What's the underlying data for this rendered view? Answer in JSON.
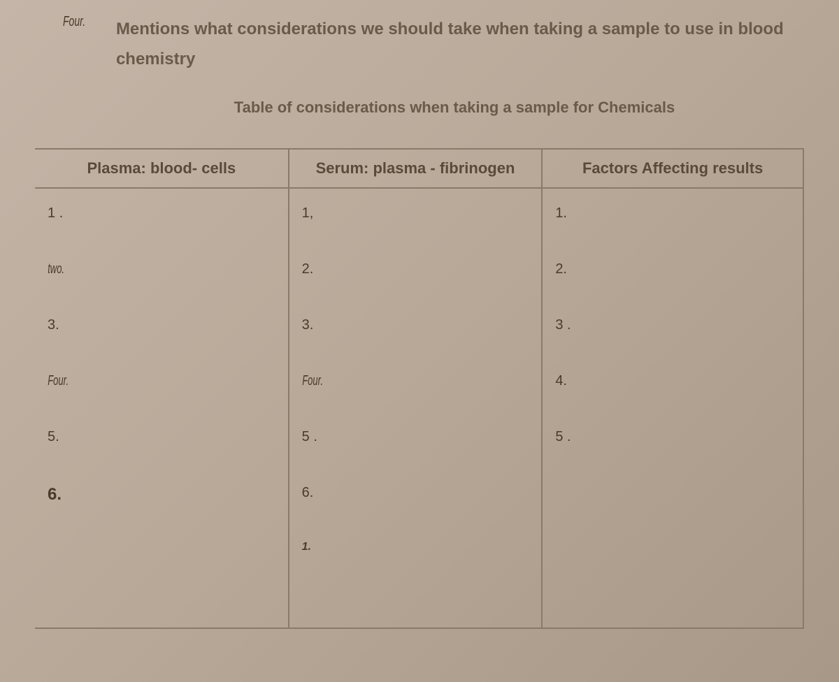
{
  "header": {
    "number": "Four.",
    "text_line": "Mentions what considerations we should take when taking a sample to use in blood  chemistry"
  },
  "caption": "Table of considerations when taking a sample for Chemicals",
  "table": {
    "headers": {
      "col_a": "Plasma: blood- cells",
      "col_b": "Serum: plasma - fibrinogen",
      "col_c": "Factors  Affecting results"
    },
    "col_a_rows": [
      "1 .",
      "two.",
      "3.",
      "Four.",
      "5.",
      "6."
    ],
    "col_a_styles": [
      "normal",
      "narrow",
      "normal",
      "narrow",
      "normal",
      "bold"
    ],
    "col_b_rows": [
      "1,",
      "2.",
      "3.",
      "Four.",
      "5 .",
      "6.",
      "1."
    ],
    "col_b_styles": [
      "normal",
      "normal",
      "normal",
      "narrow",
      "normal",
      "normal",
      "small-italic"
    ],
    "col_c_rows": [
      "1.",
      "2.",
      "3 .",
      "4.",
      "5 ."
    ],
    "col_c_styles": [
      "normal",
      "normal",
      "normal",
      "normal",
      "normal"
    ]
  },
  "colors": {
    "bg_start": "#c4b5a8",
    "bg_end": "#a89888",
    "text": "#5a4a3a",
    "border": "#8a7a6a"
  }
}
